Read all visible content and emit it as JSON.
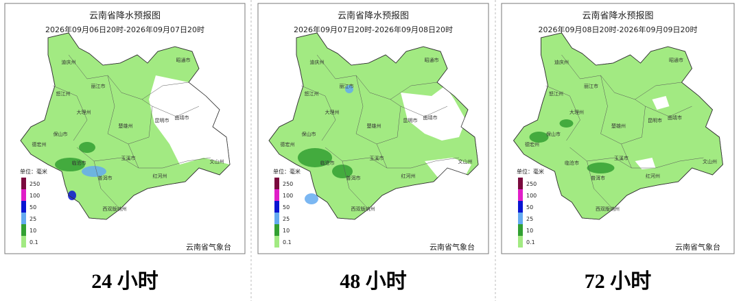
{
  "panels": [
    {
      "title": "云南省降水预报图",
      "period": "2026年09月06日20时-2026年09月07日20时",
      "caption": "24 小时"
    },
    {
      "title": "云南省降水预报图",
      "period": "2026年09月07日20时-2026年09月08日20时",
      "caption": "48 小时"
    },
    {
      "title": "云南省降水预报图",
      "period": "2026年09月08日20时-2026年09月09日20时",
      "caption": "72 小时"
    }
  ],
  "map": {
    "labels": [
      "迪庆州",
      "丽江市",
      "怒江州",
      "大理州",
      "楚雄州",
      "昆明市",
      "曲靖市",
      "昭通市",
      "保山市",
      "德宏州",
      "临沧市",
      "玉溪市",
      "普洱市",
      "红河州",
      "文山州",
      "西双版纳州"
    ]
  },
  "legend": {
    "unit": "单位：毫米",
    "items": [
      {
        "value": 250,
        "color": "#7a0a3e"
      },
      {
        "value": 100,
        "color": "#e01ec8"
      },
      {
        "value": 50,
        "color": "#0a14d2"
      },
      {
        "value": 25,
        "color": "#64aaf0"
      },
      {
        "value": 10,
        "color": "#32a032"
      },
      {
        "value": 0.1,
        "color": "#a2ea82"
      }
    ]
  },
  "agency": "云南省气象台"
}
